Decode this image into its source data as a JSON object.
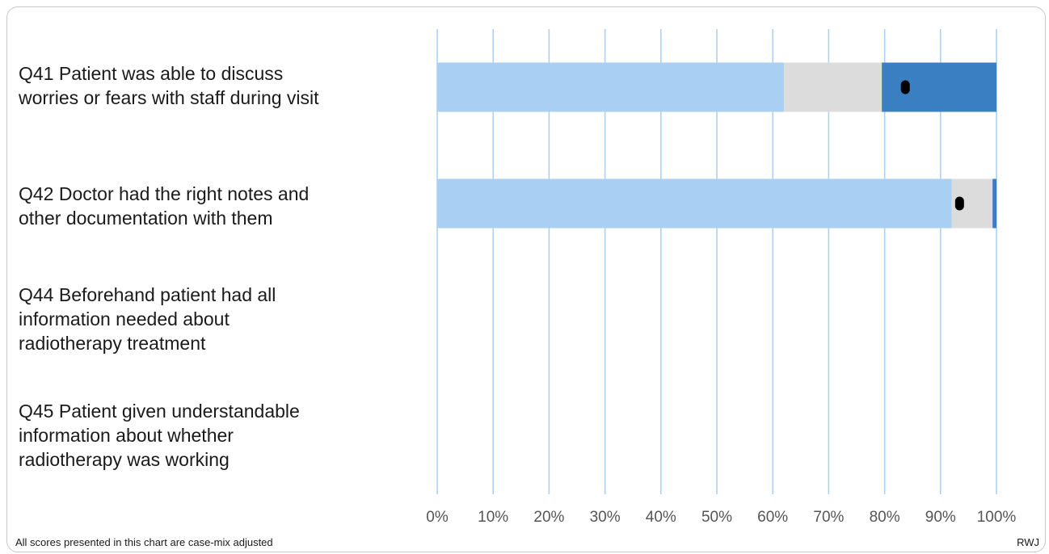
{
  "chart_data": {
    "type": "bar",
    "stacked": true,
    "orientation": "horizontal",
    "categories": [
      [
        "Q41 Patient was able to discuss",
        "worries or fears with staff during visit"
      ],
      [
        "Q42 Doctor had the right notes and",
        "other documentation with them"
      ],
      [
        "Q44 Beforehand patient had all",
        "information needed about",
        "radiotherapy treatment"
      ],
      [
        "Q45 Patient given understandable",
        "information about whether",
        "radiotherapy was working"
      ]
    ],
    "segments": [
      {
        "lower": 62,
        "upper": 79.5,
        "score": 83.7
      },
      {
        "lower": 92,
        "upper": 99.3,
        "score": 93.4
      },
      null,
      null
    ],
    "xlim": [
      0,
      100
    ],
    "xticks": [
      "0%",
      "10%",
      "20%",
      "30%",
      "40%",
      "50%",
      "60%",
      "70%",
      "80%",
      "90%",
      "100%"
    ],
    "grid": true,
    "colors": {
      "below": "#a9cff2",
      "middle": "#dcdcdc",
      "above": "#3a7fc2",
      "gridline": "#a9cff2",
      "marker": "#000000"
    }
  },
  "footnote": "All scores presented in this chart are case-mix adjusted",
  "credit": "RWJ"
}
